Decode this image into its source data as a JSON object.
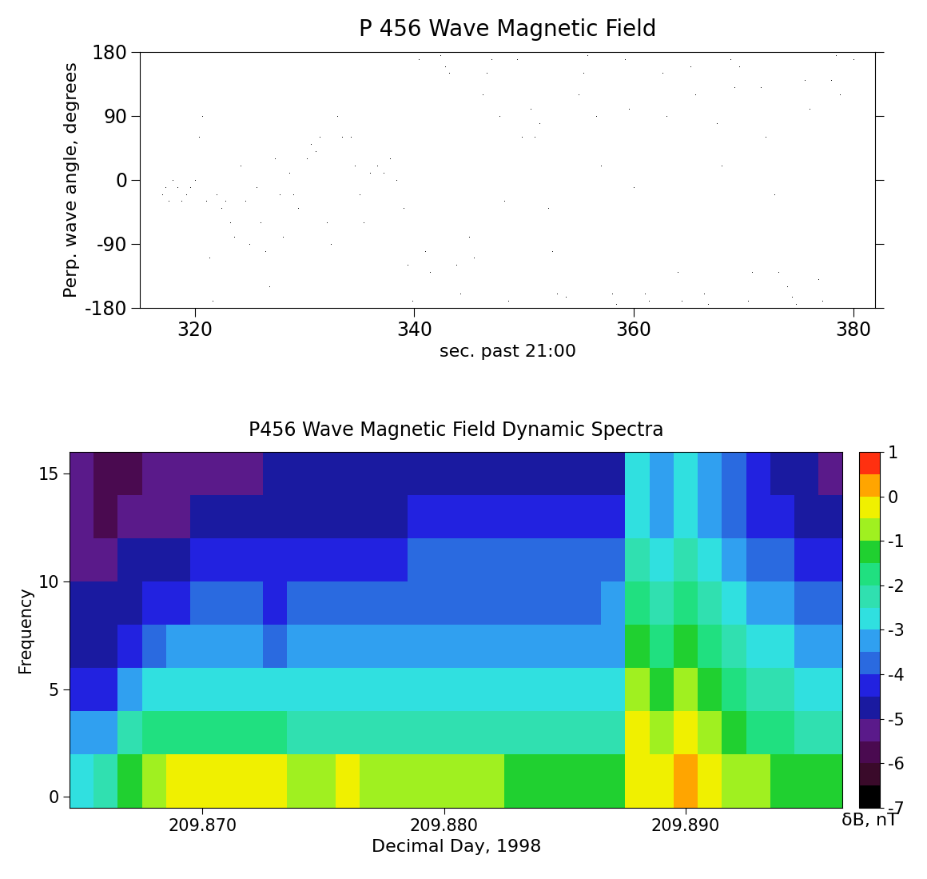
{
  "chart_data": [
    {
      "type": "scatter",
      "title": "P 456 Wave Magnetic Field",
      "x_label": "sec. past 21:00",
      "y_label": "Perp. wave angle, degrees",
      "color": "#000000",
      "marker": ".",
      "x": [
        317.0,
        317.3,
        317.6,
        318.0,
        318.4,
        318.8,
        319.2,
        319.6,
        320.0,
        320.4,
        320.7,
        321.0,
        321.3,
        321.6,
        322.0,
        322.4,
        322.8,
        323.2,
        323.6,
        324.2,
        324.6,
        325.0,
        325.6,
        326.0,
        326.4,
        326.8,
        327.3,
        327.7,
        328.0,
        328.6,
        329.0,
        329.4,
        330.2,
        330.6,
        331.0,
        331.4,
        332.0,
        332.4,
        333.0,
        333.4,
        334.2,
        334.6,
        335.0,
        335.4,
        336.0,
        336.6,
        337.2,
        337.8,
        338.4,
        339.0,
        339.4,
        339.8,
        340.4,
        341.0,
        341.4,
        342.4,
        342.8,
        343.2,
        343.8,
        344.2,
        345.0,
        345.4,
        346.2,
        346.6,
        347.0,
        347.8,
        348.2,
        348.6,
        349.4,
        349.8,
        350.6,
        351.0,
        351.4,
        352.2,
        352.6,
        353.0,
        353.8,
        354.2,
        355.0,
        355.4,
        355.8,
        356.6,
        357.0,
        358.0,
        358.4,
        359.2,
        359.6,
        360.0,
        361.0,
        361.4,
        361.8,
        362.6,
        363.0,
        364.0,
        364.4,
        365.2,
        365.6,
        366.4,
        366.8,
        367.6,
        368.0,
        368.8,
        369.2,
        369.6,
        370.4,
        370.8,
        371.6,
        372.0,
        372.8,
        373.2,
        374.0,
        374.4,
        374.8,
        375.6,
        376.0,
        376.8,
        377.2,
        378.0,
        378.4,
        378.8,
        379.6,
        380.0
      ],
      "values": [
        -20,
        -10,
        -30,
        0,
        -10,
        -30,
        -20,
        -10,
        0,
        60,
        90,
        -30,
        -110,
        -170,
        -20,
        -40,
        -30,
        -60,
        -80,
        20,
        -30,
        -90,
        -10,
        -60,
        -100,
        -150,
        30,
        -20,
        -80,
        10,
        -20,
        -40,
        30,
        50,
        40,
        60,
        -60,
        -90,
        90,
        60,
        60,
        20,
        -20,
        -60,
        10,
        20,
        10,
        30,
        0,
        -40,
        -120,
        -170,
        170,
        -100,
        -130,
        175,
        160,
        150,
        -120,
        -160,
        -80,
        -110,
        120,
        150,
        170,
        90,
        -30,
        -170,
        170,
        60,
        100,
        60,
        80,
        -40,
        -100,
        -160,
        -165,
        -180,
        120,
        150,
        175,
        90,
        20,
        -160,
        -175,
        170,
        100,
        -10,
        -160,
        -170,
        -180,
        150,
        90,
        -130,
        -170,
        160,
        120,
        -160,
        -175,
        80,
        20,
        170,
        130,
        160,
        -170,
        -130,
        130,
        60,
        -20,
        -130,
        -150,
        -165,
        -175,
        140,
        100,
        -140,
        -170,
        140,
        175,
        120,
        180,
        170
      ],
      "xlim": [
        315,
        382
      ],
      "ylim": [
        -180,
        180
      ],
      "xticks": [
        320,
        340,
        360,
        380
      ],
      "yticks": [
        -180,
        -90,
        0,
        90,
        180
      ]
    },
    {
      "type": "heatmap",
      "title": "P456 Wave Magnetic Field Dynamic Spectra",
      "x_label": "Decimal Day, 1998",
      "y_label": "Frequency",
      "x_edges": [
        209.8645,
        209.8655,
        209.8665,
        209.8675,
        209.8685,
        209.8695,
        209.8705,
        209.8715,
        209.8725,
        209.8735,
        209.8745,
        209.8755,
        209.8765,
        209.8775,
        209.8785,
        209.8795,
        209.8805,
        209.8815,
        209.8825,
        209.8835,
        209.8845,
        209.8855,
        209.8865,
        209.8875,
        209.8885,
        209.8895,
        209.8905,
        209.8915,
        209.8925,
        209.8935,
        209.8945,
        209.8955,
        209.8965
      ],
      "y_edges": [
        -0.5,
        2,
        4,
        6,
        8,
        10,
        12,
        14,
        16
      ],
      "cells": [
        [
          -3,
          -2.5,
          -1.5,
          -1,
          -0.5,
          -0.5,
          -0.5,
          -0.5,
          -0.5,
          -1,
          -1,
          -0.5,
          -1,
          -1,
          -1,
          -1,
          -1,
          -1,
          -1.5,
          -1.5,
          -1.5,
          -1.5,
          -1.5,
          -0.5,
          -0.5,
          0,
          -0.5,
          -1,
          -1,
          -1.5,
          -1.5,
          -1.5
        ],
        [
          -3.5,
          -3.5,
          -2.5,
          -2,
          -2,
          -2,
          -2,
          -2,
          -2,
          -2.5,
          -2.5,
          -2.5,
          -2.5,
          -2.5,
          -2.5,
          -2.5,
          -2.5,
          -2.5,
          -2.5,
          -2.5,
          -2.5,
          -2.5,
          -2.5,
          -0.5,
          -1,
          -0.5,
          -1,
          -1.5,
          -2,
          -2,
          -2.5,
          -2.5
        ],
        [
          -4.5,
          -4.5,
          -3.5,
          -3,
          -3,
          -3,
          -3,
          -3,
          -3,
          -3,
          -3,
          -3,
          -3,
          -3,
          -3,
          -3,
          -3,
          -3,
          -3,
          -3,
          -3,
          -3,
          -3,
          -1,
          -1.5,
          -1,
          -1.5,
          -2,
          -2.5,
          -2.5,
          -3,
          -3
        ],
        [
          -5,
          -5,
          -4.5,
          -4,
          -3.5,
          -3.5,
          -3.5,
          -3.5,
          -4,
          -3.5,
          -3.5,
          -3.5,
          -3.5,
          -3.5,
          -3.5,
          -3.5,
          -3.5,
          -3.5,
          -3.5,
          -3.5,
          -3.5,
          -3.5,
          -3.5,
          -1.5,
          -2,
          -1.5,
          -2,
          -2.5,
          -3,
          -3,
          -3.5,
          -3.5
        ],
        [
          -5,
          -5,
          -5,
          -4.5,
          -4.5,
          -4,
          -4,
          -4,
          -4.5,
          -4,
          -4,
          -4,
          -4,
          -4,
          -4,
          -4,
          -4,
          -4,
          -4,
          -4,
          -4,
          -4,
          -3.5,
          -2,
          -2.5,
          -2,
          -2.5,
          -3,
          -3.5,
          -3.5,
          -4,
          -4
        ],
        [
          -5.5,
          -5.5,
          -5,
          -5,
          -5,
          -4.5,
          -4.5,
          -4.5,
          -4.5,
          -4.5,
          -4.5,
          -4.5,
          -4.5,
          -4.5,
          -4,
          -4,
          -4,
          -4,
          -4,
          -4,
          -4,
          -4,
          -4,
          -2.5,
          -3,
          -2.5,
          -3,
          -3.5,
          -4,
          -4,
          -4.5,
          -4.5
        ],
        [
          -5.5,
          -6,
          -5.5,
          -5.5,
          -5.5,
          -5,
          -5,
          -5,
          -5,
          -5,
          -5,
          -5,
          -5,
          -5,
          -4.5,
          -4.5,
          -4.5,
          -4.5,
          -4.5,
          -4.5,
          -4.5,
          -4.5,
          -4.5,
          -3,
          -3.5,
          -3,
          -3.5,
          -4,
          -4.5,
          -4.5,
          -5,
          -5
        ],
        [
          -5.5,
          -6,
          -6,
          -5.5,
          -5.5,
          -5.5,
          -5.5,
          -5.5,
          -5,
          -5,
          -5,
          -5,
          -5,
          -5,
          -5,
          -5,
          -5,
          -5,
          -5,
          -5,
          -5,
          -5,
          -5,
          -3,
          -3.5,
          -3,
          -3.5,
          -4,
          -4.5,
          -5,
          -5,
          -5.5
        ]
      ],
      "xlim": [
        209.8645,
        209.8965
      ],
      "ylim": [
        -0.5,
        16
      ],
      "xticks": [
        {
          "value": 209.87,
          "label": "209.870"
        },
        {
          "value": 209.88,
          "label": "209.880"
        },
        {
          "value": 209.89,
          "label": "209.890"
        }
      ],
      "yticks": [
        0,
        5,
        10,
        15
      ],
      "colorbar": {
        "label": "δB, nT",
        "range": [
          -7,
          1
        ],
        "ticks": [
          -7,
          -6,
          -5,
          -4,
          -3,
          -2,
          -1,
          0,
          1
        ],
        "colors": [
          "#000000",
          "#3a0a2a",
          "#4a0a50",
          "#5a1a8a",
          "#1a1aa0",
          "#2222e0",
          "#2a6ae0",
          "#30a0f0",
          "#30e0e0",
          "#30e0b0",
          "#20e080",
          "#20d030",
          "#a0f020",
          "#f0f000",
          "#ffa500",
          "#ff3010"
        ]
      }
    }
  ]
}
